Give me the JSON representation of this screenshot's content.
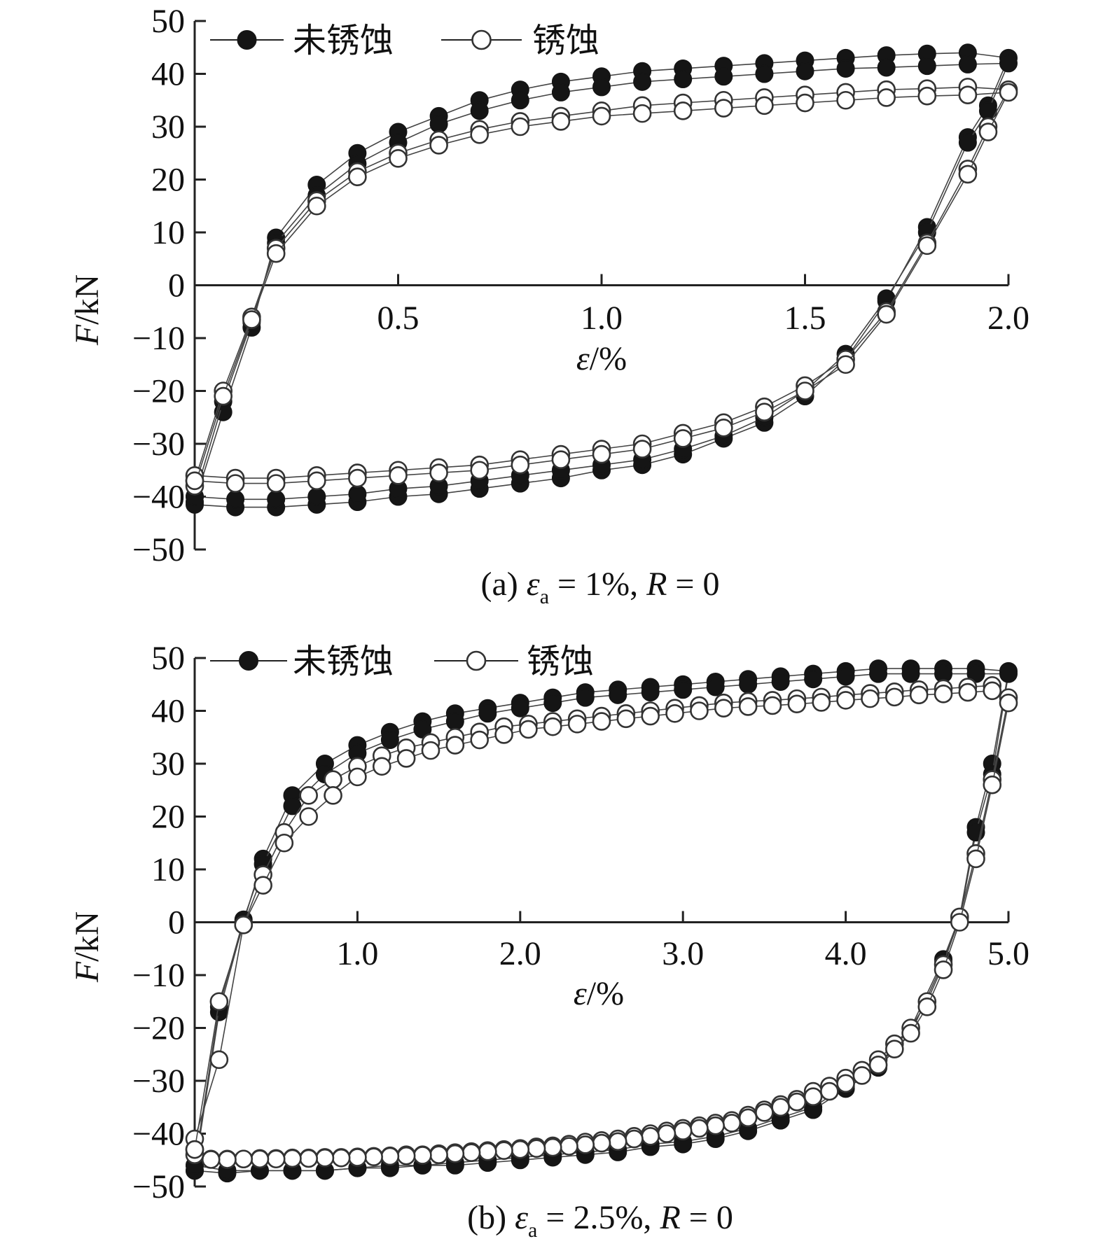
{
  "chart_data": [
    {
      "type": "line",
      "caption": "(a) εa = 1%, R = 0",
      "caption_parts": {
        "prefix": "(a) ",
        "symbol": "ε",
        "subscript": "a",
        "suffix_pre": " = 1%, ",
        "italic": "R",
        "suffix": " = 0"
      },
      "xlabel": "ε/%",
      "ylabel": "F/kN",
      "xlim": [
        0,
        2.0
      ],
      "ylim": [
        -50,
        50
      ],
      "xticks": [
        "0.5",
        "1.0",
        "1.5",
        "2.0"
      ],
      "xtick_values": [
        0.5,
        1.0,
        1.5,
        2.0
      ],
      "yticks": [
        "50",
        "40",
        "30",
        "20",
        "10",
        "0",
        "−10",
        "−20",
        "−30",
        "−40",
        "−50"
      ],
      "ytick_values": [
        50,
        40,
        30,
        20,
        10,
        0,
        -10,
        -20,
        -30,
        -40,
        -50
      ],
      "legend": [
        "未锈蚀",
        "锈蚀"
      ],
      "legend_position": "top-left",
      "grid": false,
      "series": [
        {
          "name": "未锈蚀",
          "marker": "filled",
          "x": [
            0.0,
            0.07,
            0.14,
            0.2,
            0.3,
            0.4,
            0.5,
            0.6,
            0.7,
            0.8,
            0.9,
            1.0,
            1.1,
            1.2,
            1.3,
            1.4,
            1.5,
            1.6,
            1.7,
            1.8,
            1.9,
            2.0,
            1.95,
            1.9,
            1.8,
            1.7,
            1.6,
            1.5,
            1.4,
            1.3,
            1.2,
            1.1,
            1.0,
            0.9,
            0.8,
            0.7,
            0.6,
            0.5,
            0.4,
            0.3,
            0.2,
            0.1,
            0.0
          ],
          "y": [
            -41,
            -24,
            -8,
            9,
            19,
            25,
            29,
            32,
            35,
            37,
            38.5,
            39.5,
            40.5,
            41,
            41.5,
            42,
            42.5,
            43,
            43.5,
            43.8,
            44,
            43,
            34,
            28,
            11,
            -3,
            -14,
            -21,
            -26,
            -29,
            -32,
            -34,
            -35,
            -36.5,
            -37.5,
            -38.5,
            -39.5,
            -40,
            -41,
            -41.5,
            -42,
            -42,
            -41.5
          ]
        },
        {
          "name": "未锈蚀",
          "marker": "filled",
          "x": [
            0.0,
            0.07,
            0.14,
            0.2,
            0.3,
            0.4,
            0.5,
            0.6,
            0.7,
            0.8,
            0.9,
            1.0,
            1.1,
            1.2,
            1.3,
            1.4,
            1.5,
            1.6,
            1.7,
            1.8,
            1.9,
            2.0,
            1.95,
            1.9,
            1.8,
            1.7,
            1.6,
            1.5,
            1.4,
            1.3,
            1.2,
            1.1,
            1.0,
            0.9,
            0.8,
            0.7,
            0.6,
            0.5,
            0.4,
            0.3,
            0.2,
            0.1,
            0.0
          ],
          "y": [
            -40,
            -22,
            -7,
            8,
            17,
            23,
            27,
            30.5,
            33,
            35,
            36.5,
            37.5,
            38.5,
            39,
            39.5,
            40,
            40.5,
            41,
            41.2,
            41.5,
            41.8,
            42,
            33,
            27,
            10,
            -2.5,
            -13,
            -20,
            -25,
            -28.5,
            -31,
            -33,
            -34,
            -35,
            -36,
            -37,
            -38,
            -38.5,
            -39.5,
            -40,
            -40.5,
            -40.5,
            -40
          ]
        },
        {
          "name": "锈蚀",
          "marker": "open",
          "x": [
            0.0,
            0.07,
            0.14,
            0.2,
            0.3,
            0.4,
            0.5,
            0.6,
            0.7,
            0.8,
            0.9,
            1.0,
            1.1,
            1.2,
            1.3,
            1.4,
            1.5,
            1.6,
            1.7,
            1.8,
            1.9,
            2.0,
            1.95,
            1.9,
            1.8,
            1.7,
            1.6,
            1.5,
            1.4,
            1.3,
            1.2,
            1.1,
            1.0,
            0.9,
            0.8,
            0.7,
            0.6,
            0.5,
            0.4,
            0.3,
            0.2,
            0.1,
            0.0
          ],
          "y": [
            -37,
            -20,
            -6,
            7,
            16,
            21.5,
            25,
            27.5,
            29.5,
            31,
            32,
            33,
            34,
            34.5,
            35,
            35.5,
            36,
            36.5,
            37,
            37.2,
            37.5,
            37,
            30,
            22,
            8,
            -5,
            -14,
            -19,
            -23,
            -26,
            -28,
            -30,
            -31,
            -32,
            -33,
            -34,
            -34.5,
            -35,
            -35.5,
            -36,
            -36.5,
            -36.5,
            -36
          ]
        },
        {
          "name": "锈蚀",
          "marker": "open",
          "x": [
            0.0,
            0.07,
            0.14,
            0.2,
            0.3,
            0.4,
            0.5,
            0.6,
            0.7,
            0.8,
            0.9,
            1.0,
            1.1,
            1.2,
            1.3,
            1.4,
            1.5,
            1.6,
            1.7,
            1.8,
            1.9,
            2.0,
            1.95,
            1.9,
            1.8,
            1.7,
            1.6,
            1.5,
            1.4,
            1.3,
            1.2,
            1.1,
            1.0,
            0.9,
            0.8,
            0.7,
            0.6,
            0.5,
            0.4,
            0.3,
            0.2,
            0.1,
            0.0
          ],
          "y": [
            -38,
            -21,
            -6.5,
            6,
            15,
            20.5,
            24,
            26.5,
            28.5,
            30,
            31,
            32,
            32.5,
            33,
            33.5,
            34,
            34.5,
            35,
            35.5,
            35.8,
            36,
            36.5,
            29,
            21,
            7.5,
            -5.5,
            -15,
            -20,
            -24,
            -27,
            -29,
            -31,
            -32,
            -33,
            -34,
            -35,
            -35.5,
            -36,
            -36.5,
            -37,
            -37.5,
            -37.5,
            -37
          ]
        }
      ]
    },
    {
      "type": "line",
      "caption": "(b) εa = 2.5%, R = 0",
      "caption_parts": {
        "prefix": "(b) ",
        "symbol": "ε",
        "subscript": "a",
        "suffix_pre": " = 2.5%, ",
        "italic": "R",
        "suffix": " = 0"
      },
      "xlabel": "ε/%",
      "ylabel": "F/kN",
      "xlim": [
        0,
        5.0
      ],
      "ylim": [
        -50,
        50
      ],
      "xticks": [
        "1.0",
        "2.0",
        "3.0",
        "4.0",
        "5.0"
      ],
      "xtick_values": [
        1.0,
        2.0,
        3.0,
        4.0,
        5.0
      ],
      "yticks": [
        "50",
        "40",
        "30",
        "20",
        "10",
        "0",
        "−10",
        "−20",
        "−30",
        "−40",
        "−50"
      ],
      "ytick_values": [
        50,
        40,
        30,
        20,
        10,
        0,
        -10,
        -20,
        -30,
        -40,
        -50
      ],
      "legend": [
        "未锈蚀",
        "锈蚀"
      ],
      "legend_position": "top-left",
      "grid": false,
      "series": [
        {
          "name": "未锈蚀",
          "marker": "filled",
          "x": [
            0.0,
            0.15,
            0.3,
            0.42,
            0.6,
            0.8,
            1.0,
            1.2,
            1.4,
            1.6,
            1.8,
            2.0,
            2.2,
            2.4,
            2.6,
            2.8,
            3.0,
            3.2,
            3.4,
            3.6,
            3.8,
            4.0,
            4.2,
            4.4,
            4.6,
            4.8,
            5.0,
            4.9,
            4.8,
            4.7,
            4.6,
            4.4,
            4.2,
            4.0,
            3.8,
            3.6,
            3.4,
            3.2,
            3.0,
            2.8,
            2.6,
            2.4,
            2.2,
            2.0,
            1.8,
            1.6,
            1.4,
            1.2,
            1.0,
            0.8,
            0.6,
            0.4,
            0.2,
            0.0
          ],
          "y": [
            -47,
            -17,
            0,
            12,
            24,
            30,
            33.5,
            36,
            38,
            39.5,
            40.5,
            41.5,
            42.5,
            43.5,
            44,
            44.5,
            45,
            45.5,
            46,
            46.5,
            47,
            47.5,
            48,
            48,
            48,
            48,
            47.5,
            30,
            18,
            1,
            -7,
            -20,
            -27,
            -31,
            -35,
            -37,
            -39,
            -40.5,
            -41.5,
            -42,
            -43,
            -43.5,
            -44,
            -44.5,
            -45,
            -45.5,
            -46,
            -46,
            -46.5,
            -47,
            -47,
            -47,
            -47.5,
            -47
          ]
        },
        {
          "name": "未锈蚀",
          "marker": "filled",
          "x": [
            0.0,
            0.15,
            0.3,
            0.42,
            0.6,
            0.8,
            1.0,
            1.2,
            1.4,
            1.6,
            1.8,
            2.0,
            2.2,
            2.4,
            2.6,
            2.8,
            3.0,
            3.2,
            3.4,
            3.6,
            3.8,
            4.0,
            4.2,
            4.4,
            4.6,
            4.8,
            5.0,
            4.9,
            4.8,
            4.7,
            4.6,
            4.4,
            4.2,
            4.0,
            3.8,
            3.6,
            3.4,
            3.2,
            3.0,
            2.8,
            2.6,
            2.4,
            2.2,
            2.0,
            1.8,
            1.6,
            1.4,
            1.2,
            1.0,
            0.8,
            0.6,
            0.4,
            0.2,
            0.0
          ],
          "y": [
            -46,
            -16,
            0.5,
            11,
            22,
            28,
            32,
            34.5,
            36.5,
            38,
            39.5,
            40.5,
            41.5,
            42.5,
            43,
            43.5,
            44,
            44.5,
            45,
            45.5,
            46,
            46.5,
            47,
            47,
            47,
            47,
            47,
            28,
            17,
            0.5,
            -7.5,
            -21,
            -27.5,
            -31.5,
            -35.5,
            -37.5,
            -39.5,
            -41,
            -42,
            -42.5,
            -43.5,
            -44,
            -44.5,
            -45,
            -45.5,
            -46,
            -46,
            -46.5,
            -46.5,
            -47,
            -47,
            -47,
            -47,
            -46
          ]
        },
        {
          "name": "锈蚀",
          "marker": "open",
          "x": [
            0.0,
            0.15,
            0.3,
            0.42,
            0.55,
            0.7,
            0.85,
            1.0,
            1.15,
            1.3,
            1.45,
            1.6,
            1.75,
            1.9,
            2.05,
            2.2,
            2.35,
            2.5,
            2.65,
            2.8,
            2.95,
            3.1,
            3.25,
            3.4,
            3.55,
            3.7,
            3.85,
            4.0,
            4.15,
            4.3,
            4.45,
            4.6,
            4.75,
            4.9,
            5.0,
            4.9,
            4.8,
            4.7,
            4.6,
            4.5,
            4.4,
            4.3,
            4.2,
            4.1,
            4.0,
            3.9,
            3.8,
            3.7,
            3.6,
            3.5,
            3.4,
            3.3,
            3.2,
            3.1,
            3.0,
            2.9,
            2.8,
            2.7,
            2.6,
            2.5,
            2.4,
            2.3,
            2.2,
            2.1,
            2.0,
            1.9,
            1.8,
            1.7,
            1.6,
            1.5,
            1.4,
            1.3,
            1.2,
            1.1,
            1.0,
            0.9,
            0.8,
            0.7,
            0.6,
            0.5,
            0.4,
            0.3,
            0.2,
            0.1,
            0.0
          ],
          "y": [
            -41,
            -26,
            -0.5,
            9,
            17,
            24,
            27,
            29.5,
            31.5,
            33,
            34,
            35,
            36,
            37,
            37.5,
            38,
            38.5,
            39,
            39.5,
            40,
            40.5,
            41,
            41.5,
            41.8,
            42,
            42.3,
            42.6,
            43,
            43.3,
            43.6,
            44,
            44.2,
            44.5,
            44.8,
            42.5,
            27,
            13,
            1,
            -8,
            -15,
            -20,
            -23,
            -26,
            -28,
            -29.5,
            -31,
            -32,
            -33.5,
            -34.5,
            -35.5,
            -36.5,
            -37.5,
            -38,
            -38.5,
            -39,
            -39.5,
            -40,
            -40.5,
            -41,
            -41.3,
            -41.6,
            -42,
            -42.3,
            -42.5,
            -42.8,
            -43,
            -43.2,
            -43.4,
            -43.6,
            -43.8,
            -44,
            -44,
            -44.2,
            -44.3,
            -44.4,
            -44.5,
            -44.5,
            -44.6,
            -44.6,
            -44.7,
            -44.7,
            -44.8,
            -44.8,
            -44.8,
            -44
          ]
        },
        {
          "name": "锈蚀",
          "marker": "open",
          "x": [
            0.0,
            0.15,
            0.3,
            0.42,
            0.55,
            0.7,
            0.85,
            1.0,
            1.15,
            1.3,
            1.45,
            1.6,
            1.75,
            1.9,
            2.05,
            2.2,
            2.35,
            2.5,
            2.65,
            2.8,
            2.95,
            3.1,
            3.25,
            3.4,
            3.55,
            3.7,
            3.85,
            4.0,
            4.15,
            4.3,
            4.45,
            4.6,
            4.75,
            4.9,
            5.0,
            4.9,
            4.8,
            4.7,
            4.6,
            4.5,
            4.4,
            4.3,
            4.2,
            4.1,
            4.0,
            3.9,
            3.8,
            3.7,
            3.6,
            3.5,
            3.4,
            3.3,
            3.2,
            3.1,
            3.0,
            2.9,
            2.8,
            2.7,
            2.6,
            2.5,
            2.4,
            2.3,
            2.2,
            2.1,
            2.0,
            1.9,
            1.8,
            1.7,
            1.6,
            1.5,
            1.4,
            1.3,
            1.2,
            1.1,
            1.0,
            0.9,
            0.8,
            0.7,
            0.6,
            0.5,
            0.4,
            0.3,
            0.2,
            0.1,
            0.0
          ],
          "y": [
            -43,
            -15,
            -0.5,
            7,
            15,
            20,
            24,
            27.5,
            29.5,
            31,
            32.5,
            33.5,
            34.5,
            35.5,
            36.5,
            37,
            37.5,
            38,
            38.5,
            39,
            39.5,
            40,
            40.5,
            40.8,
            41,
            41.3,
            41.6,
            42,
            42.3,
            42.6,
            43,
            43.2,
            43.5,
            43.8,
            41.5,
            26,
            12,
            0,
            -9,
            -16,
            -21,
            -24,
            -27,
            -29,
            -30.5,
            -32,
            -33,
            -34,
            -35,
            -36,
            -37,
            -38,
            -38.5,
            -39,
            -39.5,
            -40,
            -40.5,
            -41,
            -41.5,
            -41.8,
            -42.1,
            -42.4,
            -42.6,
            -42.8,
            -43,
            -43.2,
            -43.4,
            -43.6,
            -43.8,
            -44,
            -44.1,
            -44.2,
            -44.3,
            -44.4,
            -44.5,
            -44.6,
            -44.6,
            -44.7,
            -44.7,
            -44.8,
            -44.8,
            -44.8,
            -44.9,
            -44.9,
            -43
          ]
        }
      ]
    }
  ]
}
